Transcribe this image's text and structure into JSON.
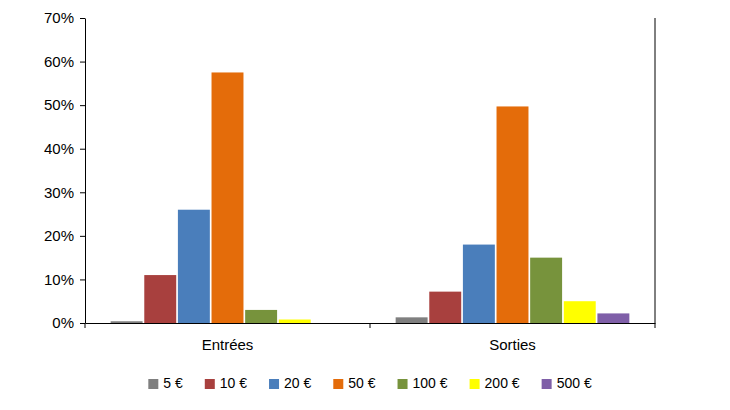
{
  "chart_data": {
    "type": "bar",
    "categories": [
      "Entrées",
      "Sorties"
    ],
    "series": [
      {
        "name": "5 €",
        "color": "#7f7f7f",
        "values": [
          0.4,
          1.3
        ]
      },
      {
        "name": "10 €",
        "color": "#a8403e",
        "values": [
          11,
          7.2
        ]
      },
      {
        "name": "20 €",
        "color": "#4a7ebb",
        "values": [
          26,
          18
        ]
      },
      {
        "name": "50 €",
        "color": "#e46c0a",
        "values": [
          57.5,
          49.7
        ]
      },
      {
        "name": "100 €",
        "color": "#77933c",
        "values": [
          3,
          15
        ]
      },
      {
        "name": "200 €",
        "color": "#ffff00",
        "values": [
          0.8,
          5
        ]
      },
      {
        "name": "500 €",
        "color": "#7f5fa8",
        "values": [
          0,
          2.2
        ]
      }
    ],
    "ylim": [
      0,
      70
    ],
    "yticks": [
      {
        "value": 0,
        "label": "0%"
      },
      {
        "value": 10,
        "label": "10%"
      },
      {
        "value": 20,
        "label": "20%"
      },
      {
        "value": 30,
        "label": "30%"
      },
      {
        "value": 40,
        "label": "40%"
      },
      {
        "value": 50,
        "label": "50%"
      },
      {
        "value": 60,
        "label": "60%"
      },
      {
        "value": 70,
        "label": "70%"
      }
    ],
    "grid": false,
    "legend": "bottom"
  }
}
